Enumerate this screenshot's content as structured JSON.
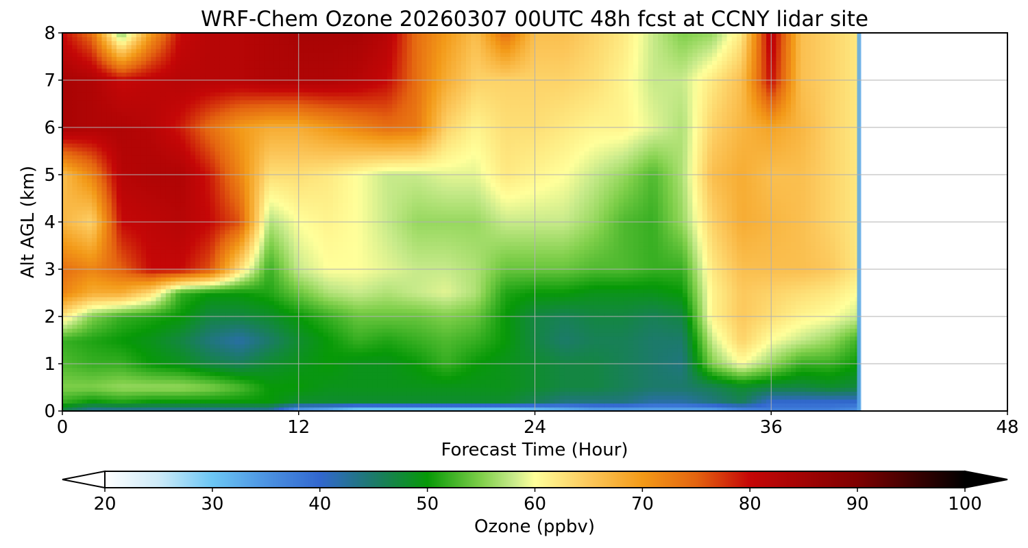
{
  "chart_data": {
    "type": "heatmap",
    "title": "WRF-Chem Ozone  20260307 00UTC 48h fcst at CCNY lidar site",
    "xlabel": "Forecast Time (Hour)",
    "ylabel": "Alt AGL (km)",
    "xlim": [
      0,
      48
    ],
    "ylim": [
      0,
      8
    ],
    "xticks": [
      0,
      12,
      24,
      36,
      48
    ],
    "yticks": [
      0,
      1,
      2,
      3,
      4,
      5,
      6,
      7,
      8
    ],
    "grid": true,
    "data_end_hour": 40.5,
    "x_hours": [
      0,
      1.5,
      3,
      4.5,
      6,
      7.5,
      9,
      10.5,
      12,
      13.5,
      15,
      16.5,
      18,
      19.5,
      21,
      22.5,
      24,
      25.5,
      27,
      28.5,
      30,
      31.5,
      33,
      34.5,
      36,
      37.5,
      39,
      40.5
    ],
    "y_km": [
      0,
      0.2,
      0.5,
      1,
      1.5,
      2,
      2.5,
      3,
      4,
      5,
      6,
      7,
      8
    ],
    "z_ppbv": [
      [
        46,
        42,
        42,
        42,
        42,
        42,
        42,
        42,
        32,
        30,
        26,
        26,
        26,
        26,
        26,
        26,
        28,
        30,
        32,
        32,
        32,
        32,
        32,
        35,
        37,
        37,
        37,
        35
      ],
      [
        52,
        50,
        51,
        50,
        50,
        50,
        50,
        50,
        48,
        48,
        48,
        48,
        48,
        48,
        48,
        48,
        46,
        44,
        44,
        44,
        42,
        42,
        44,
        46,
        40,
        40,
        40,
        40
      ],
      [
        55,
        55,
        56,
        56,
        56,
        55,
        53,
        50,
        50,
        49,
        49,
        49,
        49,
        49,
        49,
        49,
        48,
        47,
        47,
        46,
        45,
        45,
        46,
        48,
        47,
        47,
        48,
        47
      ],
      [
        53,
        52,
        52,
        50,
        49,
        47,
        46,
        48,
        49,
        50,
        49,
        49,
        50,
        52,
        50,
        49,
        48,
        47,
        47,
        46,
        45,
        44,
        55,
        60,
        56,
        52,
        52,
        50
      ],
      [
        52,
        51,
        50,
        49,
        47,
        44,
        42,
        45,
        48,
        50,
        52,
        51,
        52,
        53,
        52,
        50,
        47,
        45,
        46,
        46,
        45,
        45,
        58,
        64,
        60,
        58,
        56,
        52
      ],
      [
        62,
        55,
        52,
        51,
        50,
        47,
        47,
        48,
        50,
        52,
        54,
        54,
        54,
        55,
        54,
        50,
        47,
        46,
        47,
        47,
        46,
        47,
        61,
        65,
        63,
        61,
        60,
        58
      ],
      [
        72,
        68,
        68,
        63,
        52,
        50,
        50,
        51,
        54,
        57,
        58,
        57,
        58,
        59,
        57,
        51,
        50,
        50,
        49,
        49,
        49,
        50,
        61,
        65,
        64,
        63,
        62,
        60
      ],
      [
        74,
        72,
        75,
        80,
        80,
        76,
        63,
        52,
        58,
        60,
        60,
        59,
        58,
        58,
        57,
        54,
        54,
        54,
        53,
        53,
        52,
        52,
        62,
        66,
        66,
        66,
        65,
        62
      ],
      [
        67,
        64,
        80,
        81,
        82,
        80,
        76,
        57,
        60,
        61,
        60,
        58,
        56,
        56,
        56,
        58,
        58,
        58,
        56,
        53,
        52,
        56,
        64,
        68,
        67,
        66,
        64,
        62
      ],
      [
        66,
        72,
        82,
        83,
        83,
        79,
        72,
        63,
        63,
        62,
        60,
        58,
        58,
        59,
        59,
        62,
        61,
        60,
        58,
        56,
        53,
        57,
        66,
        68,
        66,
        66,
        64,
        62
      ],
      [
        84,
        83,
        83,
        82,
        79,
        74,
        70,
        68,
        68,
        70,
        72,
        74,
        73,
        64,
        61,
        63,
        63,
        62,
        61,
        61,
        59,
        57,
        64,
        67,
        69,
        67,
        64,
        62
      ],
      [
        84,
        83,
        80,
        81,
        82,
        82,
        82,
        83,
        83,
        83,
        82,
        80,
        74,
        68,
        64,
        64,
        64,
        64,
        63,
        61,
        58,
        58,
        62,
        66,
        80,
        66,
        64,
        62
      ],
      [
        80,
        74,
        55,
        70,
        80,
        82,
        82,
        83,
        84,
        84,
        84,
        82,
        74,
        70,
        66,
        74,
        66,
        66,
        64,
        62,
        58,
        55,
        56,
        62,
        82,
        66,
        64,
        62
      ]
    ],
    "colorbar": {
      "label": "Ozone  (ppbv)",
      "min": 20,
      "max": 100,
      "ticks": [
        20,
        30,
        40,
        50,
        60,
        70,
        80,
        90,
        100
      ],
      "extend": "both"
    }
  },
  "colors": {
    "stops": [
      [
        20,
        "#ffffff"
      ],
      [
        25,
        "#cdeaf8"
      ],
      [
        30,
        "#6cc6f4"
      ],
      [
        35,
        "#4c93e2"
      ],
      [
        40,
        "#3267cf"
      ],
      [
        45,
        "#1c7a6a"
      ],
      [
        50,
        "#079907"
      ],
      [
        55,
        "#7fcf4a"
      ],
      [
        58,
        "#c7ea8a"
      ],
      [
        60,
        "#ffff9a"
      ],
      [
        65,
        "#fcc85c"
      ],
      [
        70,
        "#f39a18"
      ],
      [
        75,
        "#e46410"
      ],
      [
        80,
        "#c50707"
      ],
      [
        90,
        "#7e0000"
      ],
      [
        100,
        "#000000"
      ]
    ],
    "grid": "#b0b0b0"
  }
}
